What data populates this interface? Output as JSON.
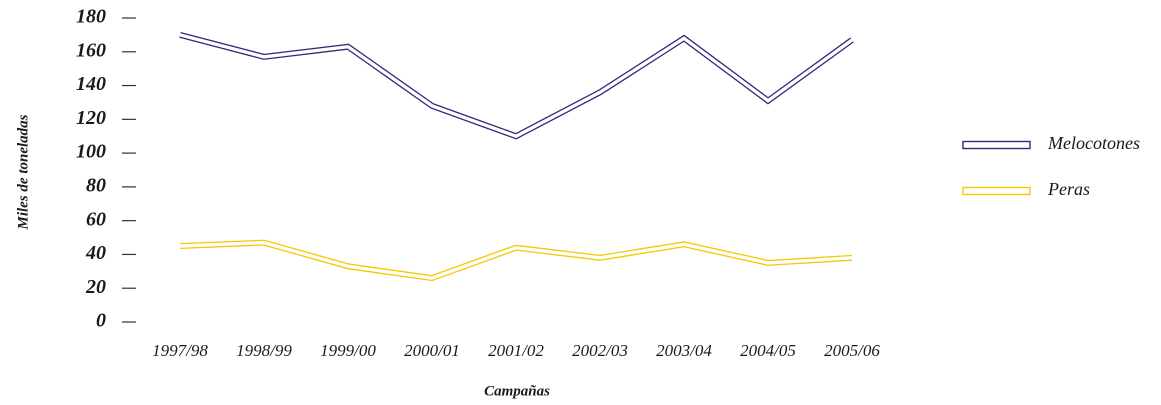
{
  "chart_data": {
    "type": "line",
    "x_label": "Campañas",
    "y_label": "Miles de toneladas",
    "categories": [
      "1997/98",
      "1998/99",
      "1999/00",
      "2000/01",
      "2001/02",
      "2002/03",
      "2003/04",
      "2004/05",
      "2005/06"
    ],
    "series": [
      {
        "name": "Melocotones",
        "color": "#2e2a7a",
        "values": [
          170,
          157,
          163,
          128,
          110,
          136,
          168,
          131,
          167
        ]
      },
      {
        "name": "Peras",
        "color": "#f5c800",
        "values": [
          45,
          47,
          33,
          26,
          44,
          38,
          46,
          35,
          38
        ]
      }
    ],
    "ylim": [
      0,
      180
    ],
    "yticks": [
      0,
      20,
      40,
      60,
      80,
      100,
      120,
      140,
      160,
      180
    ],
    "legend": "right"
  }
}
